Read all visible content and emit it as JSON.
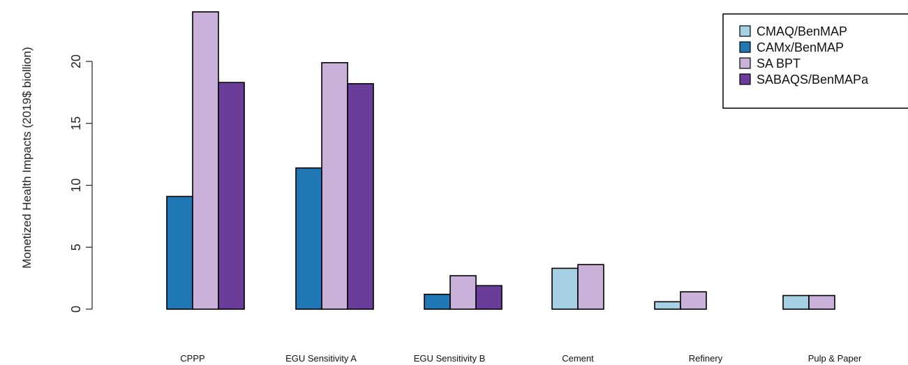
{
  "chart_data": {
    "type": "bar",
    "ylabel": "Monetized Health Impacts (2019$ biollion)",
    "xlabel": "",
    "ylim": [
      0,
      24
    ],
    "yticks": [
      0,
      5,
      10,
      15,
      20
    ],
    "grid": false,
    "legend_placement": "top-right",
    "categories": [
      "CPPP",
      "EGU Sensitivity A",
      "EGU Sensitivity B",
      "Cement",
      "Refinery",
      "Pulp & Paper"
    ],
    "series": [
      {
        "name": "CMAQ/BenMAP",
        "color": "#a6d0e4",
        "values": [
          null,
          null,
          null,
          3.3,
          0.6,
          1.1
        ]
      },
      {
        "name": "CAMx/BenMAP",
        "color": "#1f77b4",
        "values": [
          9.1,
          11.4,
          1.2,
          null,
          null,
          null
        ]
      },
      {
        "name": "SA BPT",
        "color": "#c9b1d9",
        "values": [
          24.0,
          19.9,
          2.7,
          3.6,
          1.4,
          1.1
        ]
      },
      {
        "name": "SABAQS/BenMAPa",
        "color": "#6a3d9a",
        "values": [
          18.3,
          18.2,
          1.9,
          null,
          null,
          null
        ]
      }
    ]
  }
}
